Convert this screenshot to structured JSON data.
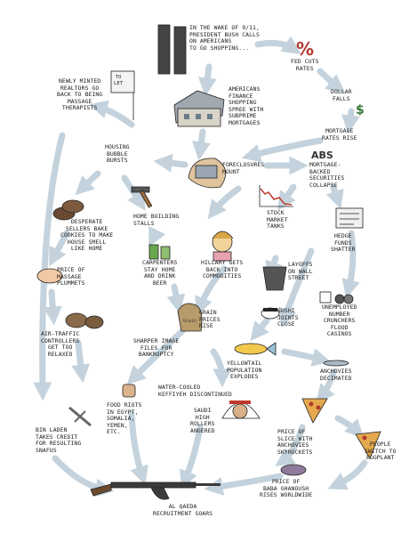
{
  "colors": {
    "arrow": "#c3d2dc",
    "ink": "#1a1a1a",
    "red": "#c0392b"
  },
  "nodes": {
    "n1": "In the wake of 9/11,\nPresident Bush calls\non Americans\nto go shopping...",
    "n2": "Fed cuts\nrates",
    "n3": "Dollar\nfalls",
    "n4": "Americans\nfinance\nshopping\nspree with\nsubprime\nmortgages",
    "n5": "Mortgage\nrates rise",
    "n6": "Newly minted\nrealtors go\nback to being\nmassage\ntherapists",
    "n6b": "To\nLet",
    "n7": "Housing\nbubble\nbursts",
    "n8": "Foreclosures\nmount",
    "n9": "Mortgage-\nbacked\nsecurities\ncollapse",
    "n9b": "ABS",
    "n10": "Desperate\nsellers bake\ncookies to make\nhouse smell\nlike home",
    "n11": "Home building\nstalls",
    "n12": "Stock\nmarket\ntanks",
    "n13": "Hedge\nfunds\nshatter",
    "n14": "Carpenters\nstay home\nand drink\nbeer",
    "n15": "Hillary gets\nback into\ncommodities",
    "n16": "Layoffs\non Wall\nStreet",
    "n17": "Price of\nmassage\nplummets",
    "n18": "Grain\nprices\nrise",
    "n18b": "Grain",
    "n19": "Sushi\njoints\nclose",
    "n20": "Unemployed\nnumber\ncrunchers\nflood\ncasinos",
    "n21": "Air-traffic\ncontrollers\nget too\nrelaxed",
    "n22": "Sharper Image\nfiles for\nbankruptcy",
    "n23": "Yellowtail\npopulation\nexplodes",
    "n24": "Anchovies\ndecimated",
    "n25": "Water-cooled\nkeffiyeh discontinued",
    "n26": "Food riots\nin Egypt,\nSomalia,\nYemen,\netc.",
    "n27": "Saudi\nhigh\nrollers\nangered",
    "n28": "Price of\nslice with\nanchovies\nskyrockets",
    "n29": "People\nswitch to\neggplant",
    "n30": "Bin Laden\ntakes credit\nfor resulting\nsnafus",
    "n31": "Price of\nbaba ghanoush\nrises worldwide",
    "n32": "Al Qaeda\nrecruitment soars"
  }
}
